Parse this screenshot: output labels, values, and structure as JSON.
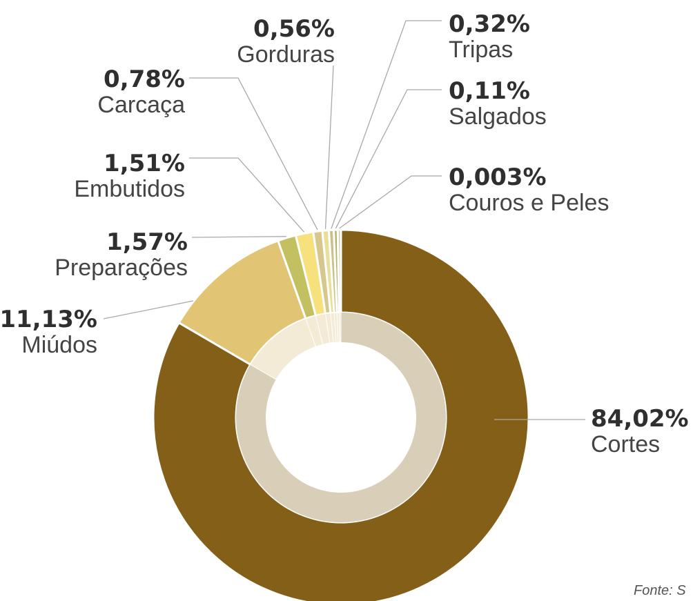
{
  "chart_data": {
    "type": "pie",
    "variant": "donut",
    "slices": [
      {
        "label": "Cortes",
        "pct_text": "84,02%",
        "value": 84.02,
        "color": "#845f18"
      },
      {
        "label": "Miúdos",
        "pct_text": "11,13%",
        "value": 11.13,
        "color": "#e2c574"
      },
      {
        "label": "Preparações",
        "pct_text": "1,57%",
        "value": 1.57,
        "color": "#c2c060"
      },
      {
        "label": "Embutidos",
        "pct_text": "1,51%",
        "value": 1.51,
        "color": "#f6e17c"
      },
      {
        "label": "Carcaça",
        "pct_text": "0,78%",
        "value": 0.78,
        "color": "#d8c78c"
      },
      {
        "label": "Gorduras",
        "pct_text": "0,56%",
        "value": 0.56,
        "color": "#e9df9a"
      },
      {
        "label": "Tripas",
        "pct_text": "0,32%",
        "value": 0.32,
        "color": "#c9c08c"
      },
      {
        "label": "Salgados",
        "pct_text": "0,11%",
        "value": 0.11,
        "color": "#b8b070"
      },
      {
        "label": "Couros e Peles",
        "pct_text": "0,003%",
        "value": 0.003,
        "color": "#d9ce9a"
      }
    ],
    "inner_ring_color": "#d9cfb9",
    "inner_ring_light_color": "#f3ebd5",
    "leader_color": "#a8a8a8"
  },
  "source_text": "Fonte: S"
}
